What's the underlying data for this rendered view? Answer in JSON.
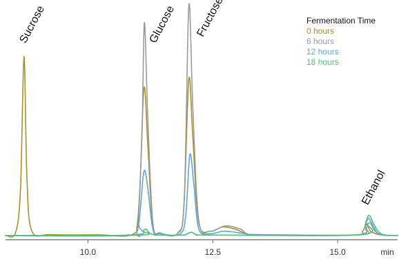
{
  "chart_data": {
    "type": "line",
    "xlabel": "min",
    "ylabel": "",
    "xlim": [
      8.35,
      16.2
    ],
    "ylim": [
      -0.02,
      1.08
    ],
    "xticks": [
      10.0,
      12.5,
      15.0
    ],
    "xtick_labels": [
      "10.0",
      "12.5",
      "15.0"
    ],
    "grid": false,
    "legend": {
      "title": "Fermentation Time",
      "placement": "top-right"
    },
    "annotations": [
      {
        "text": "Sucrose",
        "x": 8.72
      },
      {
        "text": "Glucose",
        "x": 11.12
      },
      {
        "text": "Fructose",
        "x": 12.05
      },
      {
        "text": "Ethanol",
        "x": 15.62
      }
    ],
    "series": [
      {
        "name": "0 hours",
        "color": "#a88f2a",
        "points": [
          [
            8.35,
            0.0
          ],
          [
            8.55,
            0.012
          ],
          [
            8.65,
            0.22
          ],
          [
            8.72,
            0.84
          ],
          [
            8.78,
            0.26
          ],
          [
            8.88,
            0.02
          ],
          [
            9.25,
            0.004
          ],
          [
            10.2,
            0.003
          ],
          [
            10.9,
            0.006
          ],
          [
            11.02,
            0.12
          ],
          [
            11.12,
            0.69
          ],
          [
            11.2,
            0.42
          ],
          [
            11.3,
            0.04
          ],
          [
            11.45,
            0.01
          ],
          [
            11.8,
            0.01
          ],
          [
            11.92,
            0.13
          ],
          [
            12.02,
            0.735
          ],
          [
            12.1,
            0.46
          ],
          [
            12.22,
            0.06
          ],
          [
            12.45,
            0.02
          ],
          [
            12.7,
            0.04
          ],
          [
            12.95,
            0.03
          ],
          [
            13.15,
            0.01
          ],
          [
            13.4,
            0.004
          ],
          [
            15.3,
            0.002
          ],
          [
            15.5,
            0.02
          ],
          [
            15.58,
            0.055
          ],
          [
            15.66,
            0.02
          ],
          [
            15.85,
            0.003
          ],
          [
            16.2,
            0.0
          ]
        ]
      },
      {
        "name": "6 hours",
        "color": "#9a9a9a",
        "points": [
          [
            8.35,
            0.0
          ],
          [
            10.8,
            0.002
          ],
          [
            10.98,
            0.04
          ],
          [
            11.08,
            0.46
          ],
          [
            11.13,
            1.0
          ],
          [
            11.2,
            0.54
          ],
          [
            11.3,
            0.06
          ],
          [
            11.45,
            0.012
          ],
          [
            11.8,
            0.012
          ],
          [
            11.93,
            0.18
          ],
          [
            12.02,
            1.08
          ],
          [
            12.1,
            0.6
          ],
          [
            12.22,
            0.07
          ],
          [
            12.45,
            0.02
          ],
          [
            12.75,
            0.045
          ],
          [
            13.05,
            0.03
          ],
          [
            13.18,
            0.008
          ],
          [
            13.4,
            0.003
          ],
          [
            15.45,
            0.003
          ],
          [
            15.56,
            0.03
          ],
          [
            15.64,
            0.06
          ],
          [
            15.75,
            0.02
          ],
          [
            15.9,
            0.002
          ],
          [
            16.2,
            0.0
          ]
        ]
      },
      {
        "name": "12 hours",
        "color": "#58a8d8",
        "points": [
          [
            8.35,
            0.0
          ],
          [
            10.9,
            0.002
          ],
          [
            11.02,
            0.06
          ],
          [
            11.12,
            0.3
          ],
          [
            11.2,
            0.22
          ],
          [
            11.3,
            0.03
          ],
          [
            11.45,
            0.008
          ],
          [
            11.85,
            0.008
          ],
          [
            11.96,
            0.1
          ],
          [
            12.04,
            0.38
          ],
          [
            12.12,
            0.24
          ],
          [
            12.22,
            0.03
          ],
          [
            12.45,
            0.008
          ],
          [
            12.7,
            0.02
          ],
          [
            12.95,
            0.015
          ],
          [
            13.25,
            0.004
          ],
          [
            13.5,
            0.002
          ],
          [
            15.4,
            0.003
          ],
          [
            15.55,
            0.05
          ],
          [
            15.62,
            0.08
          ],
          [
            15.72,
            0.04
          ],
          [
            15.85,
            0.004
          ],
          [
            16.2,
            0.0
          ]
        ]
      },
      {
        "name": "18 hours",
        "color": "#4dbf7a",
        "points": [
          [
            8.35,
            0.0
          ],
          [
            11.0,
            0.001
          ],
          [
            11.1,
            0.02
          ],
          [
            11.16,
            0.03
          ],
          [
            11.24,
            0.01
          ],
          [
            11.4,
            0.002
          ],
          [
            11.9,
            0.002
          ],
          [
            12.0,
            0.01
          ],
          [
            12.08,
            0.015
          ],
          [
            12.18,
            0.004
          ],
          [
            12.5,
            0.002
          ],
          [
            15.45,
            0.004
          ],
          [
            15.56,
            0.06
          ],
          [
            15.63,
            0.095
          ],
          [
            15.73,
            0.05
          ],
          [
            15.88,
            0.006
          ],
          [
            16.2,
            0.0
          ]
        ]
      }
    ]
  }
}
